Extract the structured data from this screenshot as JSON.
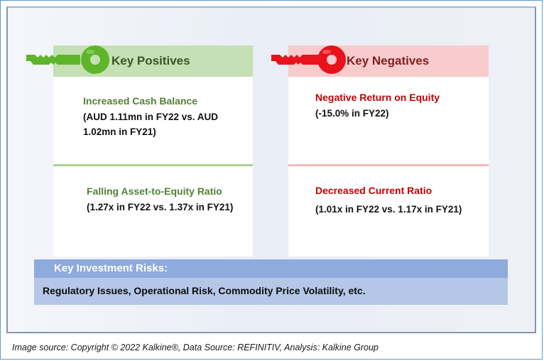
{
  "positives": {
    "header": "Key Positives",
    "items": [
      {
        "title": "Increased Cash Balance",
        "detail": "(AUD 1.11mn in FY22 vs. AUD 1.02mn in FY21)"
      },
      {
        "title": "Falling Asset-to-Equity Ratio",
        "detail": "(1.27x in FY22 vs. 1.37x in FY21)"
      }
    ]
  },
  "negatives": {
    "header": "Key Negatives",
    "items": [
      {
        "title": "Negative Return on Equity",
        "detail": "(-15.0% in FY22)"
      },
      {
        "title": "Decreased Current Ratio",
        "detail": "(1.01x in FY22 vs. 1.17x in FY21)"
      }
    ]
  },
  "risks": {
    "header": "Key Investment Risks:",
    "body": "Regulatory Issues, Operational Risk, Commodity Price Volatility, etc."
  },
  "caption": "Image source: Copyright © 2022 Kalkine®, Data Source: REFINITIV, Analysis: Kalkine Group",
  "colors": {
    "positive_key": "#5fb52a",
    "negative_key": "#e8121a",
    "risks_header": "#8faadc",
    "risks_body": "#b4c7e7"
  },
  "icons": [
    "green-key-icon",
    "red-key-icon"
  ]
}
